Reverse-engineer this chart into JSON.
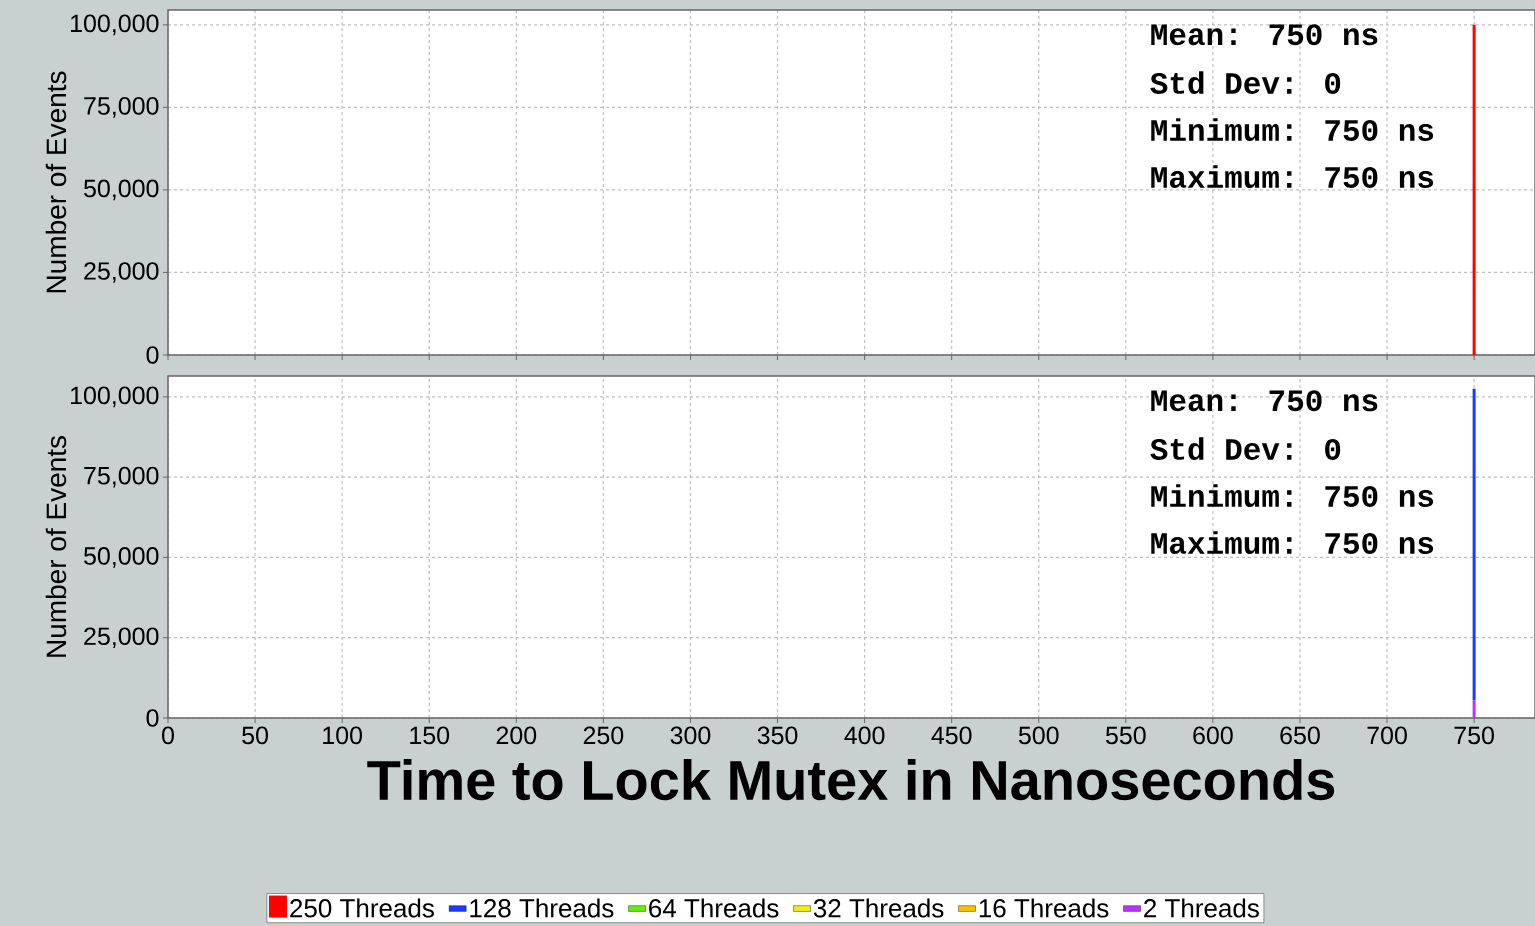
{
  "chart_data": [
    {
      "type": "bar",
      "ylabel": "Number of Events",
      "x": [
        750
      ],
      "series": [
        {
          "name": "250 Threads",
          "color": "#ff0000",
          "values": [
            100000
          ]
        }
      ],
      "xlim": [
        0,
        785
      ],
      "xticks": [
        0,
        50,
        100,
        150,
        200,
        250,
        300,
        350,
        400,
        450,
        500,
        550,
        600,
        650,
        700,
        750
      ],
      "ylim": [
        0,
        104500
      ],
      "yticks": [
        {
          "value": 0,
          "label": "0"
        },
        {
          "value": 25000,
          "label": "25,000"
        },
        {
          "value": 50000,
          "label": "50,000"
        },
        {
          "value": 75000,
          "label": "75,000"
        },
        {
          "value": 100000,
          "label": "100,000"
        }
      ],
      "annotations": [
        "Mean: 750 ns",
        "Std Dev: 0",
        "Minimum: 750 ns",
        "Maximum: 750 ns"
      ],
      "grid": true,
      "tick_labels": "y"
    },
    {
      "type": "bar",
      "xlabel": "Time to Lock Mutex in Nanoseconds",
      "ylabel": "Number of Events",
      "x": [
        750
      ],
      "series": [
        {
          "name": "2 Threads",
          "color": "#bb33ff",
          "values": [
            5500
          ]
        },
        {
          "name": "16 Threads",
          "color": "#f5c400",
          "values": [
            null
          ]
        },
        {
          "name": "32 Threads",
          "color": "#eeee22",
          "values": [
            null
          ]
        },
        {
          "name": "64 Threads",
          "color": "#66ee11",
          "values": [
            null
          ]
        },
        {
          "name": "128 Threads",
          "color": "#1a3cff",
          "values": [
            97000
          ]
        }
      ],
      "stacked": true,
      "xlim": [
        0,
        785
      ],
      "xticks": [
        0,
        50,
        100,
        150,
        200,
        250,
        300,
        350,
        400,
        450,
        500,
        550,
        600,
        650,
        700,
        750
      ],
      "ylim": [
        0,
        106500
      ],
      "yticks": [
        {
          "value": 0,
          "label": "0"
        },
        {
          "value": 25000,
          "label": "25,000"
        },
        {
          "value": 50000,
          "label": "50,000"
        },
        {
          "value": 75000,
          "label": "75,000"
        },
        {
          "value": 100000,
          "label": "100,000"
        }
      ],
      "annotations": [
        "Mean: 750 ns",
        "Std Dev: 0",
        "Minimum: 750 ns",
        "Maximum: 750 ns"
      ],
      "grid": true,
      "legend": "bottom"
    }
  ]
}
